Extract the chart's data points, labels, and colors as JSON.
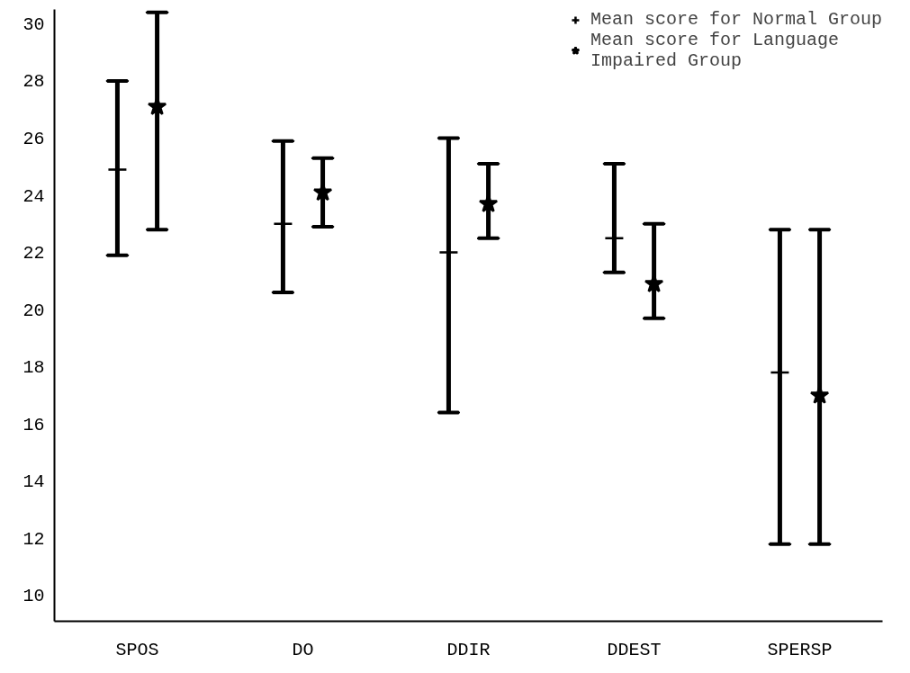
{
  "chart_data": {
    "type": "scatter",
    "categories": [
      "SPOS",
      "DO",
      "DDIR",
      "DDEST",
      "SPERSP"
    ],
    "series": [
      {
        "name": "Mean score for Normal Group",
        "color": "#000000",
        "marker": "cross",
        "values": [
          24.9,
          23.0,
          22.0,
          22.5,
          17.8
        ],
        "errors": [
          [
            21.9,
            28.0
          ],
          [
            20.6,
            25.9
          ],
          [
            16.4,
            26.0
          ],
          [
            21.3,
            25.1
          ],
          [
            11.8,
            22.8
          ]
        ]
      },
      {
        "name": "Mean score for Language\nImpaired Group",
        "color": "#000000",
        "marker": "star",
        "values": [
          27.1,
          24.1,
          23.7,
          20.9,
          17.0
        ],
        "errors": [
          [
            22.8,
            30.4
          ],
          [
            22.9,
            25.3
          ],
          [
            22.5,
            25.1
          ],
          [
            19.7,
            23.0
          ],
          [
            11.8,
            22.8
          ]
        ]
      }
    ],
    "ylim": [
      9.1,
      30.5
    ],
    "yticks": [
      10,
      12,
      14,
      16,
      18,
      20,
      22,
      24,
      26,
      28,
      30
    ],
    "grid": false,
    "legend": "top right"
  }
}
